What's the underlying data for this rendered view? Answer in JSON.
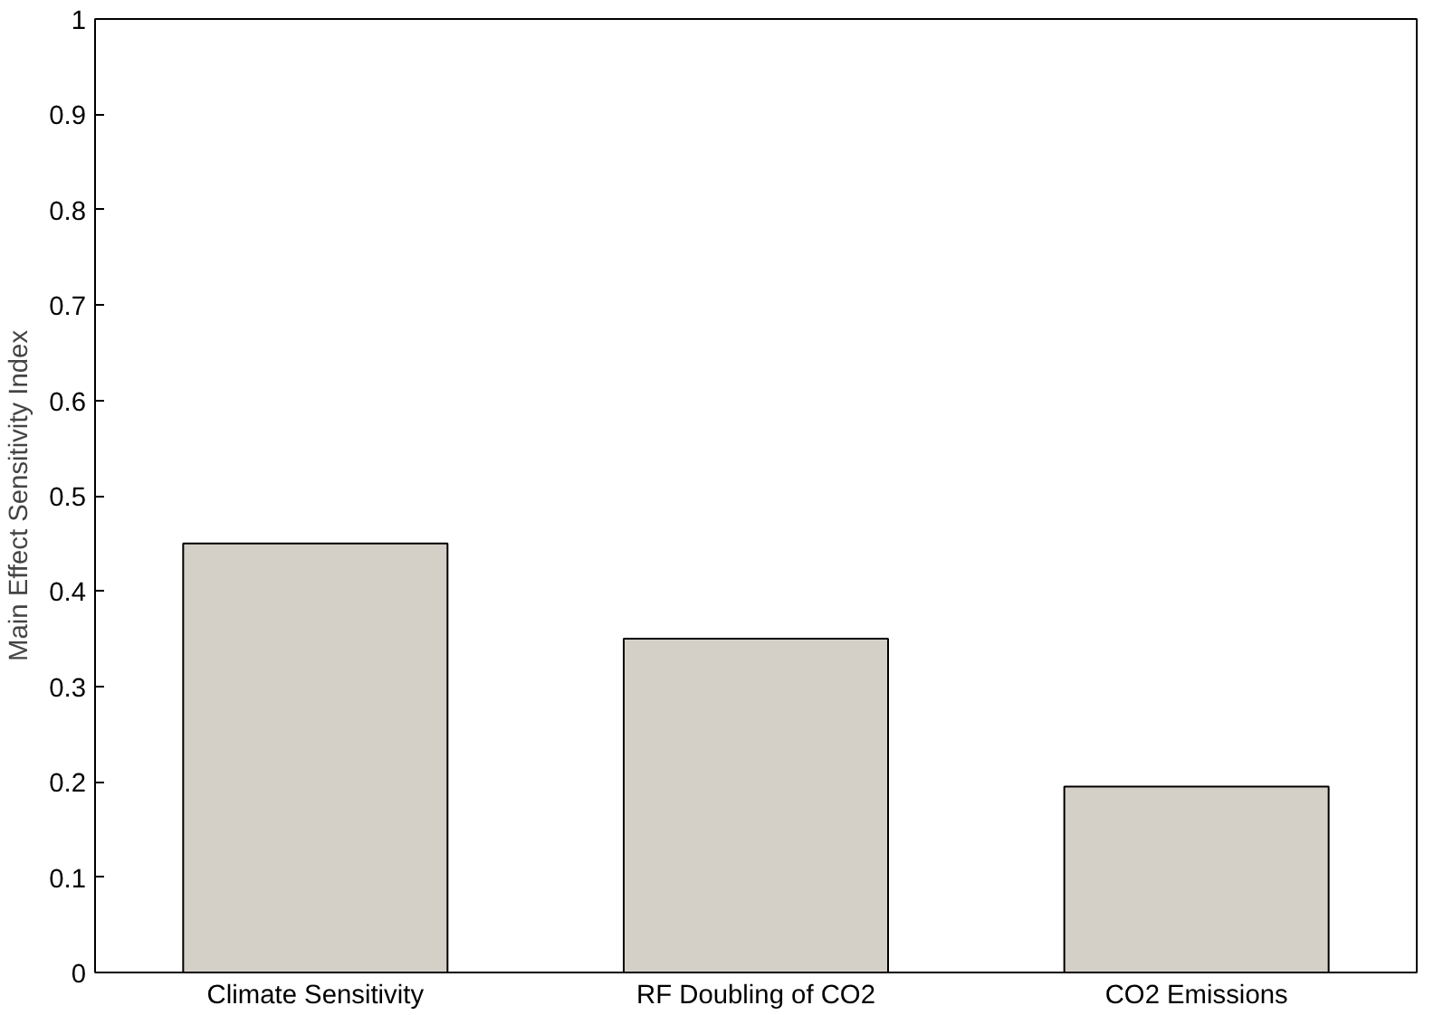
{
  "chart_data": {
    "type": "bar",
    "ylabel": "Main Effect Sensitivity Index",
    "categories": [
      "Climate Sensitivity",
      "RF Doubling of CO2",
      "CO2 Emissions"
    ],
    "values": [
      0.45,
      0.35,
      0.195
    ],
    "color": "#d4d0c8",
    "ylim": [
      0,
      1
    ],
    "yticks": [
      0,
      0.1,
      0.2,
      0.3,
      0.4,
      0.5,
      0.6,
      0.7,
      0.8,
      0.9,
      1
    ],
    "grid": false
  }
}
